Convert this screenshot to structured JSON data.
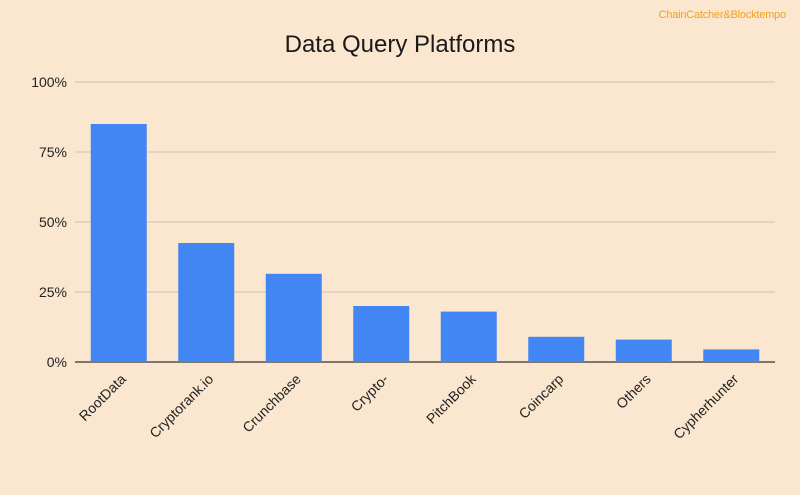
{
  "watermark": "ChainCatcher&Blocktempo",
  "chart_data": {
    "type": "bar",
    "title": "Data Query Platforms",
    "xlabel": "",
    "ylabel": "",
    "categories": [
      "RootData",
      "Cryptorank.io",
      "Crunchbase",
      "Crypto-",
      "PitchBook",
      "Coincarp",
      "Others",
      "Cypherhunter"
    ],
    "values": [
      85,
      42.5,
      31.5,
      20,
      18,
      9,
      8,
      4.5
    ],
    "unit": "%",
    "ylim": [
      0,
      100
    ],
    "yticks": [
      {
        "value": 0,
        "label": "0%"
      },
      {
        "value": 25,
        "label": "25%"
      },
      {
        "value": 50,
        "label": "50%"
      },
      {
        "value": 75,
        "label": "75%"
      },
      {
        "value": 100,
        "label": "100%"
      }
    ],
    "grid": true,
    "legend": "none",
    "bar_color": "#4286f4",
    "gridline_color": "#cfc1b2",
    "background_color": "#fbe6cf"
  }
}
